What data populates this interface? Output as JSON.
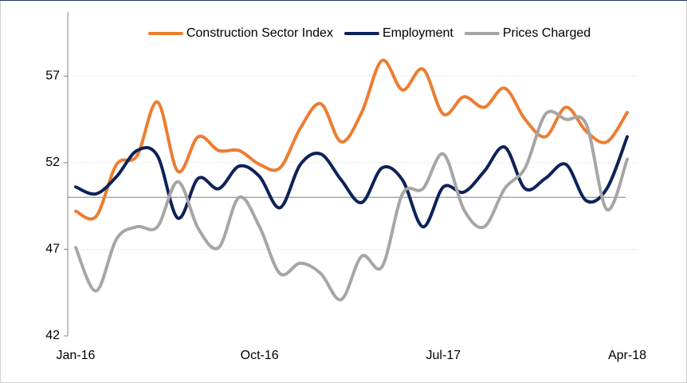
{
  "chart_data": {
    "type": "line",
    "categories": [
      "Jan-16",
      null,
      null,
      null,
      null,
      null,
      null,
      null,
      null,
      "Oct-16",
      null,
      null,
      null,
      null,
      null,
      null,
      null,
      null,
      "Jul-17",
      null,
      null,
      null,
      null,
      null,
      null,
      null,
      null,
      "Apr-18"
    ],
    "series": [
      {
        "name": "Construction Sector Index",
        "color": "#ed7d31",
        "values": [
          49.2,
          48.9,
          51.9,
          52.4,
          55.5,
          51.5,
          53.5,
          52.7,
          52.7,
          51.9,
          51.7,
          54.0,
          55.4,
          53.2,
          54.9,
          57.9,
          56.2,
          57.4,
          54.8,
          55.8,
          55.2,
          56.3,
          54.5,
          53.5,
          55.2,
          53.8,
          53.2,
          54.9
        ]
      },
      {
        "name": "Employment",
        "color": "#0d2258",
        "values": [
          50.6,
          50.2,
          51.2,
          52.7,
          52.4,
          48.8,
          51.1,
          50.5,
          51.8,
          51.2,
          49.4,
          51.9,
          52.5,
          51.0,
          49.7,
          51.7,
          51.0,
          48.3,
          50.6,
          50.3,
          51.5,
          52.9,
          50.5,
          51.1,
          51.9,
          49.8,
          50.5,
          53.5
        ]
      },
      {
        "name": "Prices Charged",
        "color": "#a6a6a6",
        "values": [
          47.1,
          44.6,
          47.6,
          48.3,
          48.3,
          50.9,
          48.2,
          47.1,
          50.0,
          48.3,
          45.6,
          46.2,
          45.6,
          44.1,
          46.6,
          46.0,
          50.2,
          50.5,
          52.5,
          49.3,
          48.3,
          50.5,
          51.7,
          54.8,
          54.5,
          54.2,
          49.3,
          52.2
        ]
      }
    ],
    "ylim": [
      42,
      60.7
    ],
    "yticks": [
      42,
      47,
      52,
      57
    ],
    "grid": true,
    "reference_line": 50,
    "legend": "top"
  }
}
